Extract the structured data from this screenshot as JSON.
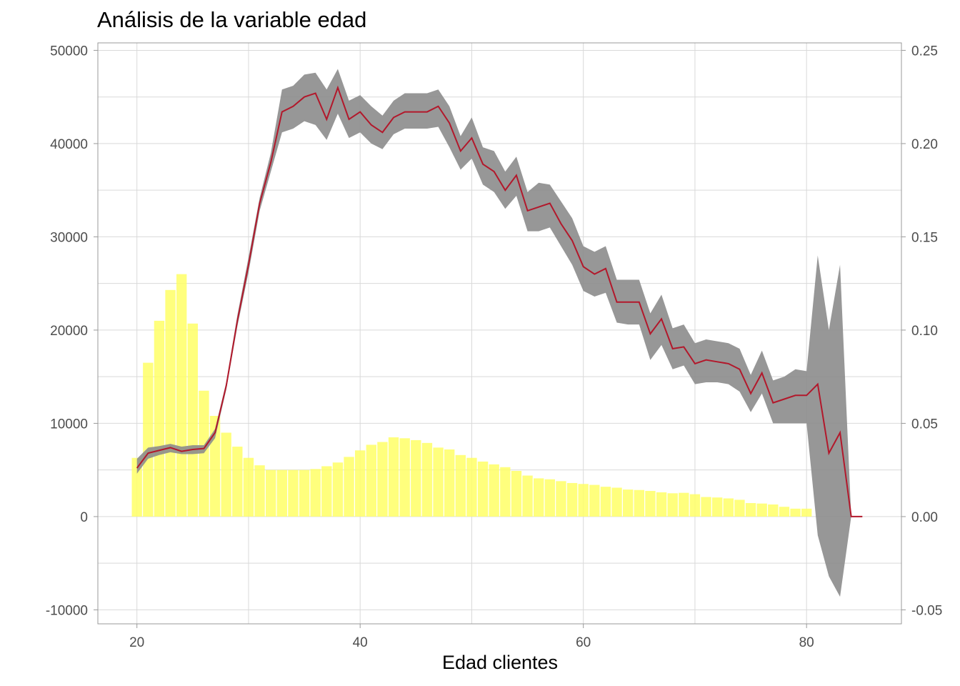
{
  "chart_data": {
    "type": "bar",
    "title": "Análisis de la variable edad",
    "xlabel": "Edad clientes",
    "ylabel": "",
    "ylabel_right": "",
    "xlim": [
      16.5,
      88.5
    ],
    "ylim": [
      -11500,
      50800
    ],
    "ylim_right": [
      -0.0575,
      0.254
    ],
    "x_ticks": [
      20,
      40,
      60,
      80
    ],
    "y_ticks": [
      -10000,
      0,
      10000,
      20000,
      30000,
      40000,
      50000
    ],
    "y_ticks_right": [
      -0.05,
      0.0,
      0.05,
      0.1,
      0.15,
      0.2,
      0.25
    ],
    "y_tick_labels_right": [
      "-0.05",
      "0.00",
      "0.05",
      "0.10",
      "0.15",
      "0.20",
      "0.25"
    ],
    "grid": true,
    "legend": "none",
    "colors": {
      "bars": "#ffff66",
      "line": "#b2182b",
      "band": "#8c8c8c",
      "grid": "#d9d9d9",
      "frame": "#999999"
    },
    "bars": {
      "name": "",
      "x": [
        20,
        21,
        22,
        23,
        24,
        25,
        26,
        27,
        28,
        29,
        30,
        31,
        32,
        33,
        34,
        35,
        36,
        37,
        38,
        39,
        40,
        41,
        42,
        43,
        44,
        45,
        46,
        47,
        48,
        49,
        50,
        51,
        52,
        53,
        54,
        55,
        56,
        57,
        58,
        59,
        60,
        61,
        62,
        63,
        64,
        65,
        66,
        67,
        68,
        69,
        70,
        71,
        72,
        73,
        74,
        75,
        76,
        77,
        78,
        79,
        80
      ],
      "values": [
        6300,
        16500,
        21000,
        24300,
        26000,
        20700,
        13500,
        10800,
        9000,
        7500,
        6300,
        5500,
        5000,
        5000,
        5000,
        5000,
        5100,
        5400,
        5800,
        6400,
        7100,
        7700,
        8000,
        8500,
        8400,
        8200,
        7900,
        7400,
        7200,
        6600,
        6300,
        5900,
        5600,
        5300,
        4900,
        4400,
        4100,
        4000,
        3800,
        3600,
        3500,
        3400,
        3200,
        3100,
        2900,
        2850,
        2750,
        2600,
        2500,
        2550,
        2400,
        2100,
        2050,
        1950,
        1800,
        1450,
        1400,
        1300,
        1050,
        850,
        850
      ]
    },
    "line": {
      "name": "",
      "x": [
        20,
        21,
        22,
        23,
        24,
        25,
        26,
        27,
        28,
        29,
        30,
        31,
        32,
        33,
        34,
        35,
        36,
        37,
        38,
        39,
        40,
        41,
        42,
        43,
        44,
        45,
        46,
        47,
        48,
        49,
        50,
        51,
        52,
        53,
        54,
        55,
        56,
        57,
        58,
        59,
        60,
        61,
        62,
        63,
        64,
        65,
        66,
        67,
        68,
        69,
        70,
        71,
        72,
        73,
        74,
        75,
        76,
        77,
        78,
        79,
        80,
        81,
        82,
        83,
        84,
        85
      ],
      "y": [
        0.026,
        0.034,
        0.0355,
        0.037,
        0.035,
        0.036,
        0.0365,
        0.045,
        0.07,
        0.105,
        0.135,
        0.168,
        0.19,
        0.217,
        0.22,
        0.225,
        0.227,
        0.213,
        0.23,
        0.213,
        0.217,
        0.21,
        0.206,
        0.214,
        0.217,
        0.217,
        0.217,
        0.22,
        0.211,
        0.196,
        0.203,
        0.189,
        0.185,
        0.175,
        0.183,
        0.164,
        0.166,
        0.168,
        0.157,
        0.148,
        0.134,
        0.13,
        0.133,
        0.115,
        0.115,
        0.115,
        0.098,
        0.106,
        0.09,
        0.091,
        0.082,
        0.084,
        0.083,
        0.082,
        0.079,
        0.066,
        0.077,
        0.061,
        0.063,
        0.065,
        0.065,
        0.071,
        0.034,
        0.045,
        0.0,
        0.0
      ],
      "lower": [
        0.023,
        0.031,
        0.033,
        0.0345,
        0.0335,
        0.0335,
        0.034,
        0.042,
        0.068,
        0.102,
        0.131,
        0.164,
        0.185,
        0.206,
        0.208,
        0.212,
        0.21,
        0.202,
        0.216,
        0.203,
        0.206,
        0.2,
        0.197,
        0.205,
        0.208,
        0.208,
        0.208,
        0.209,
        0.198,
        0.186,
        0.192,
        0.178,
        0.174,
        0.165,
        0.172,
        0.153,
        0.153,
        0.155,
        0.145,
        0.135,
        0.121,
        0.118,
        0.12,
        0.104,
        0.103,
        0.103,
        0.084,
        0.092,
        0.079,
        0.081,
        0.071,
        0.072,
        0.072,
        0.071,
        0.067,
        0.056,
        0.066,
        0.05,
        0.05,
        0.05,
        0.05,
        -0.01,
        -0.032,
        -0.043,
        0.0,
        0.0
      ],
      "upper": [
        0.031,
        0.037,
        0.0378,
        0.039,
        0.0375,
        0.0383,
        0.0383,
        0.047,
        0.072,
        0.108,
        0.139,
        0.171,
        0.195,
        0.229,
        0.231,
        0.237,
        0.238,
        0.229,
        0.24,
        0.223,
        0.226,
        0.22,
        0.215,
        0.223,
        0.227,
        0.227,
        0.227,
        0.229,
        0.22,
        0.204,
        0.214,
        0.198,
        0.196,
        0.185,
        0.193,
        0.174,
        0.179,
        0.178,
        0.169,
        0.16,
        0.145,
        0.142,
        0.145,
        0.127,
        0.127,
        0.127,
        0.109,
        0.119,
        0.101,
        0.103,
        0.093,
        0.095,
        0.094,
        0.093,
        0.09,
        0.076,
        0.089,
        0.073,
        0.075,
        0.079,
        0.078,
        0.14,
        0.1,
        0.135,
        0.0,
        0.0
      ]
    }
  }
}
